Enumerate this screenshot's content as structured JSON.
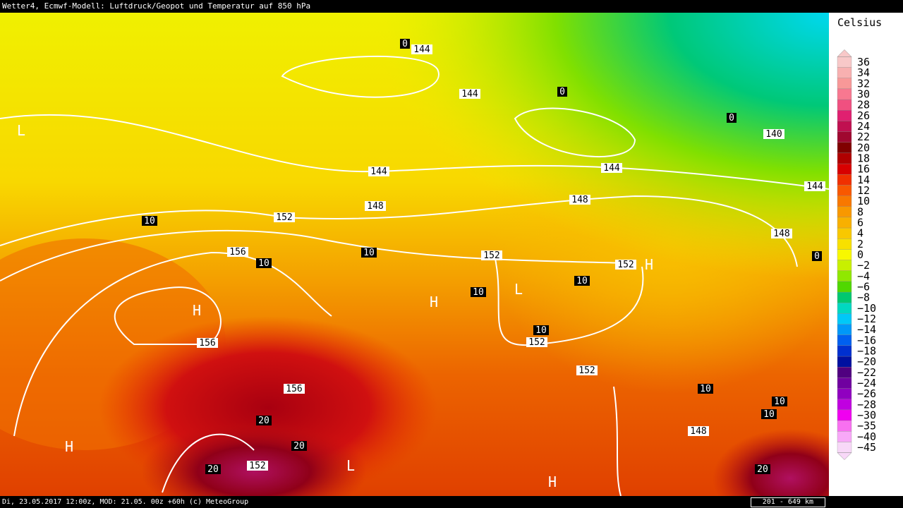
{
  "header": {
    "title": "Wetter4, Ecmwf-Modell: Luftdruck/Geopot und Temperatur auf 850 hPa"
  },
  "footer": {
    "text": "Di, 23.05.2017 12:00z, MOD: 21.05. 00z +60h (c) MeteoGroup",
    "scale": "201 - 649 km"
  },
  "legend": {
    "title": "Celsius",
    "labels": [
      "36",
      "34",
      "32",
      "30",
      "28",
      "26",
      "24",
      "22",
      "20",
      "18",
      "16",
      "14",
      "12",
      "10",
      "8",
      "6",
      "4",
      "2",
      "0",
      "−2",
      "−4",
      "−6",
      "−8",
      "−10",
      "−12",
      "−14",
      "−16",
      "−18",
      "−20",
      "−22",
      "−24",
      "−26",
      "−28",
      "−30",
      "−35",
      "−40",
      "−45"
    ]
  },
  "map": {
    "geopotential_labels": [
      "144",
      "144",
      "144",
      "144",
      "144",
      "140",
      "148",
      "148",
      "148",
      "148",
      "152",
      "152",
      "152",
      "152",
      "152",
      "152",
      "156",
      "156",
      "156"
    ],
    "temperature_labels": [
      "0",
      "0",
      "0",
      "0",
      "10",
      "10",
      "10",
      "10",
      "10",
      "10",
      "10",
      "10",
      "10",
      "20",
      "20",
      "20",
      "20"
    ],
    "pressure_centers": [
      "L",
      "H",
      "H",
      "L",
      "H",
      "H",
      "L",
      "H"
    ]
  }
}
